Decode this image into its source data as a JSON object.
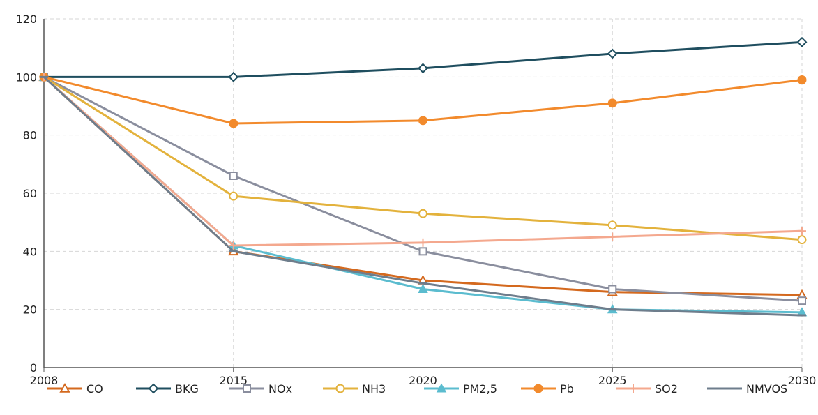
{
  "chart_data": {
    "type": "line",
    "title": "",
    "xlabel": "",
    "ylabel": "",
    "x": [
      "2008",
      "2015",
      "2020",
      "2025",
      "2030"
    ],
    "ylim": [
      0,
      120
    ],
    "yticks": [
      "0",
      "20",
      "40",
      "60",
      "80",
      "100",
      "120"
    ],
    "grid": true,
    "legend_placement": "bottom",
    "series": [
      {
        "name": "CO",
        "color": "#d4691e",
        "marker": "triangle-open",
        "values": [
          100,
          40,
          30,
          26,
          25
        ]
      },
      {
        "name": "BKG",
        "color": "#1f4e5f",
        "marker": "diamond-open",
        "values": [
          100,
          100,
          103,
          108,
          112
        ]
      },
      {
        "name": "NOx",
        "color": "#8a8e9e",
        "marker": "square-open",
        "values": [
          100,
          66,
          40,
          27,
          23
        ]
      },
      {
        "name": "NH3",
        "color": "#e3b23c",
        "marker": "circle-open",
        "values": [
          100,
          59,
          53,
          49,
          44
        ]
      },
      {
        "name": "PM2,5",
        "color": "#5bbccf",
        "marker": "triangle-filled",
        "values": [
          100,
          42,
          27,
          20,
          19
        ]
      },
      {
        "name": "Pb",
        "color": "#f28a2c",
        "marker": "circle-filled",
        "values": [
          100,
          84,
          85,
          91,
          99
        ]
      },
      {
        "name": "SO2",
        "color": "#f4a88e",
        "marker": "plus",
        "values": [
          100,
          42,
          43,
          45,
          47
        ]
      },
      {
        "name": "NMVOS",
        "color": "#6e7d8c",
        "marker": "dash",
        "values": [
          100,
          40,
          29,
          20,
          18
        ]
      }
    ]
  }
}
